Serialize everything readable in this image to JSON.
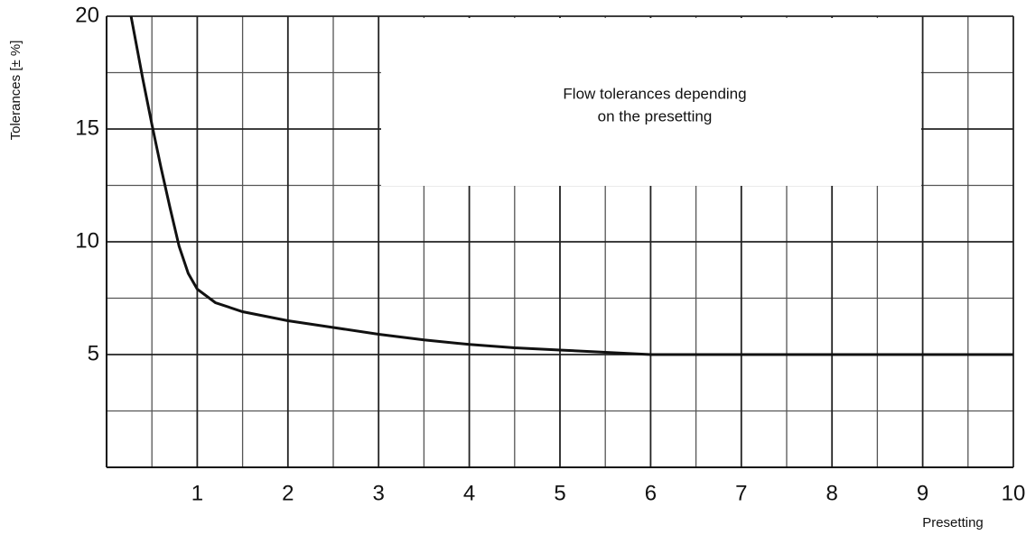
{
  "chart_data": {
    "type": "line",
    "annotation": [
      "Flow tolerances depending",
      "on the presetting"
    ],
    "xlabel": "Presetting",
    "ylabel": "Tolerances [± %]",
    "x": [
      0.27,
      0.4,
      0.5,
      0.6,
      0.7,
      0.8,
      0.9,
      1.0,
      1.2,
      1.5,
      2.0,
      2.5,
      3.0,
      3.5,
      4.0,
      4.5,
      5.0,
      5.5,
      6.0,
      7.0,
      8.0,
      9.0,
      10.0
    ],
    "values": [
      20,
      17.2,
      15.2,
      13.3,
      11.5,
      9.8,
      8.6,
      7.9,
      7.3,
      6.9,
      6.5,
      6.2,
      5.9,
      5.65,
      5.45,
      5.3,
      5.2,
      5.1,
      5.0,
      5.0,
      5.0,
      5.0,
      5.0
    ],
    "color": "#111111",
    "xlim": [
      0,
      10
    ],
    "ylim": [
      0,
      20
    ],
    "xticks": [
      1,
      2,
      3,
      4,
      5,
      6,
      7,
      8,
      9,
      10
    ],
    "yticks": [
      5,
      10,
      15,
      20
    ],
    "xminorticks": [
      0.5,
      1.5,
      2.5,
      3.5,
      4.5,
      5.5,
      6.5,
      7.5,
      8.5,
      9.5
    ],
    "yminorticks": [
      2.5,
      7.5,
      12.5,
      17.5
    ],
    "grid": true
  }
}
